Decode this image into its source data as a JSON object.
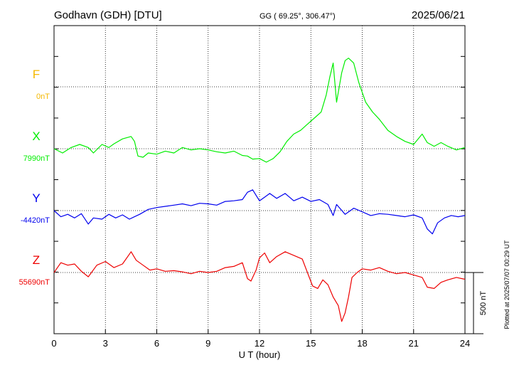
{
  "header": {
    "station": "Godhavn (GDH)  [DTU]",
    "coords": "GG ( 69.25°, 306.47°)",
    "date": "2025/06/21"
  },
  "footer": {
    "plotted": "Plotted at 2025/07/07 00:29 UT"
  },
  "chart_data": {
    "type": "line",
    "xlabel": "U T (hour)",
    "xlim": [
      0,
      24
    ],
    "xticks": [
      0,
      3,
      6,
      9,
      12,
      15,
      18,
      21,
      24
    ],
    "xtick_labels": [
      "0",
      "3",
      "6",
      "9",
      "12",
      "15",
      "18",
      "21",
      "24"
    ],
    "scale_bar": {
      "label": "500 nT",
      "value_nT": 500
    },
    "grid": true,
    "series": [
      {
        "name": "F",
        "baseline_label": "0nT",
        "color": "#f5b800",
        "points": []
      },
      {
        "name": "X",
        "baseline_label": "7990nT",
        "color": "#00ee00",
        "points": [
          [
            0.0,
            0
          ],
          [
            0.5,
            -35
          ],
          [
            1.0,
            10
          ],
          [
            1.5,
            35
          ],
          [
            2.0,
            10
          ],
          [
            2.3,
            -35
          ],
          [
            2.8,
            35
          ],
          [
            3.2,
            10
          ],
          [
            3.5,
            40
          ],
          [
            4.0,
            80
          ],
          [
            4.5,
            100
          ],
          [
            4.7,
            60
          ],
          [
            4.9,
            -60
          ],
          [
            5.2,
            -70
          ],
          [
            5.5,
            -35
          ],
          [
            6.0,
            -45
          ],
          [
            6.5,
            -20
          ],
          [
            7.0,
            -35
          ],
          [
            7.5,
            10
          ],
          [
            8.0,
            -10
          ],
          [
            8.5,
            0
          ],
          [
            9.0,
            -10
          ],
          [
            9.5,
            -25
          ],
          [
            10.0,
            -35
          ],
          [
            10.5,
            -20
          ],
          [
            11.0,
            -55
          ],
          [
            11.3,
            -60
          ],
          [
            11.6,
            -85
          ],
          [
            12.0,
            -80
          ],
          [
            12.4,
            -110
          ],
          [
            12.8,
            -80
          ],
          [
            13.2,
            -25
          ],
          [
            13.6,
            60
          ],
          [
            14.0,
            120
          ],
          [
            14.4,
            150
          ],
          [
            14.8,
            200
          ],
          [
            15.2,
            250
          ],
          [
            15.6,
            300
          ],
          [
            15.9,
            440
          ],
          [
            16.1,
            580
          ],
          [
            16.3,
            700
          ],
          [
            16.5,
            380
          ],
          [
            16.8,
            620
          ],
          [
            17.0,
            720
          ],
          [
            17.2,
            740
          ],
          [
            17.5,
            700
          ],
          [
            17.8,
            540
          ],
          [
            18.2,
            380
          ],
          [
            18.6,
            300
          ],
          [
            19.0,
            240
          ],
          [
            19.5,
            150
          ],
          [
            20.0,
            100
          ],
          [
            20.5,
            60
          ],
          [
            21.0,
            35
          ],
          [
            21.5,
            120
          ],
          [
            21.8,
            50
          ],
          [
            22.2,
            20
          ],
          [
            22.6,
            50
          ],
          [
            23.0,
            20
          ],
          [
            23.5,
            -10
          ],
          [
            24.0,
            10
          ]
        ]
      },
      {
        "name": "Y",
        "baseline_label": "-4420nT",
        "color": "#0000ee",
        "points": [
          [
            0.0,
            0
          ],
          [
            0.4,
            -50
          ],
          [
            0.8,
            -30
          ],
          [
            1.2,
            -60
          ],
          [
            1.6,
            -25
          ],
          [
            2.0,
            -110
          ],
          [
            2.3,
            -60
          ],
          [
            2.8,
            -70
          ],
          [
            3.2,
            -30
          ],
          [
            3.6,
            -60
          ],
          [
            4.0,
            -35
          ],
          [
            4.4,
            -70
          ],
          [
            4.7,
            -50
          ],
          [
            5.0,
            -30
          ],
          [
            5.5,
            10
          ],
          [
            6.0,
            25
          ],
          [
            6.5,
            35
          ],
          [
            7.0,
            45
          ],
          [
            7.5,
            55
          ],
          [
            8.0,
            40
          ],
          [
            8.5,
            60
          ],
          [
            9.0,
            55
          ],
          [
            9.5,
            45
          ],
          [
            10.0,
            75
          ],
          [
            10.5,
            80
          ],
          [
            11.0,
            90
          ],
          [
            11.3,
            150
          ],
          [
            11.6,
            170
          ],
          [
            12.0,
            80
          ],
          [
            12.3,
            110
          ],
          [
            12.6,
            140
          ],
          [
            13.0,
            100
          ],
          [
            13.5,
            140
          ],
          [
            14.0,
            80
          ],
          [
            14.5,
            110
          ],
          [
            15.0,
            75
          ],
          [
            15.5,
            90
          ],
          [
            16.0,
            50
          ],
          [
            16.3,
            -40
          ],
          [
            16.5,
            50
          ],
          [
            17.0,
            -30
          ],
          [
            17.5,
            20
          ],
          [
            18.0,
            -10
          ],
          [
            18.5,
            -40
          ],
          [
            19.0,
            -25
          ],
          [
            19.5,
            -30
          ],
          [
            20.0,
            -40
          ],
          [
            20.5,
            -50
          ],
          [
            21.0,
            -35
          ],
          [
            21.5,
            -60
          ],
          [
            21.8,
            -150
          ],
          [
            22.1,
            -190
          ],
          [
            22.4,
            -100
          ],
          [
            22.8,
            -60
          ],
          [
            23.2,
            -40
          ],
          [
            23.6,
            -50
          ],
          [
            24.0,
            -40
          ]
        ]
      },
      {
        "name": "Z",
        "baseline_label": "55690nT",
        "color": "#ee0000",
        "points": [
          [
            0.0,
            0
          ],
          [
            0.4,
            80
          ],
          [
            0.8,
            60
          ],
          [
            1.2,
            70
          ],
          [
            1.6,
            10
          ],
          [
            2.0,
            -35
          ],
          [
            2.5,
            60
          ],
          [
            3.0,
            90
          ],
          [
            3.5,
            40
          ],
          [
            4.0,
            70
          ],
          [
            4.5,
            170
          ],
          [
            4.8,
            100
          ],
          [
            5.2,
            60
          ],
          [
            5.6,
            20
          ],
          [
            6.0,
            30
          ],
          [
            6.5,
            10
          ],
          [
            7.0,
            15
          ],
          [
            7.5,
            5
          ],
          [
            8.0,
            -10
          ],
          [
            8.5,
            10
          ],
          [
            9.0,
            0
          ],
          [
            9.5,
            10
          ],
          [
            10.0,
            40
          ],
          [
            10.5,
            50
          ],
          [
            11.0,
            80
          ],
          [
            11.3,
            -50
          ],
          [
            11.5,
            -70
          ],
          [
            11.8,
            20
          ],
          [
            12.0,
            120
          ],
          [
            12.3,
            160
          ],
          [
            12.6,
            80
          ],
          [
            13.0,
            130
          ],
          [
            13.5,
            170
          ],
          [
            14.0,
            140
          ],
          [
            14.5,
            110
          ],
          [
            14.8,
            0
          ],
          [
            15.1,
            -110
          ],
          [
            15.4,
            -130
          ],
          [
            15.7,
            -60
          ],
          [
            16.0,
            -100
          ],
          [
            16.3,
            -200
          ],
          [
            16.6,
            -270
          ],
          [
            16.8,
            -400
          ],
          [
            17.0,
            -330
          ],
          [
            17.2,
            -200
          ],
          [
            17.4,
            -40
          ],
          [
            17.7,
            0
          ],
          [
            18.0,
            30
          ],
          [
            18.5,
            20
          ],
          [
            19.0,
            40
          ],
          [
            19.5,
            10
          ],
          [
            20.0,
            -10
          ],
          [
            20.5,
            0
          ],
          [
            21.0,
            -20
          ],
          [
            21.5,
            -40
          ],
          [
            21.8,
            -120
          ],
          [
            22.2,
            -130
          ],
          [
            22.6,
            -80
          ],
          [
            23.0,
            -60
          ],
          [
            23.5,
            -40
          ],
          [
            24.0,
            -55
          ]
        ]
      }
    ]
  }
}
